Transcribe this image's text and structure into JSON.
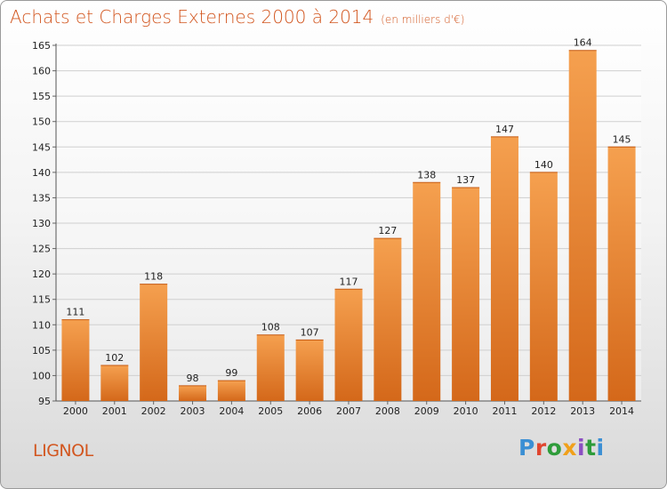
{
  "title": "Achats et Charges Externes 2000 à 2014",
  "unit_note": "(en milliers d'€)",
  "commune_name": "LIGNOL",
  "logo_text": "Proxiti",
  "colors": {
    "title": "#d2561f",
    "bar_top": "#f5a04f",
    "bar_bottom": "#d4681a",
    "logo": [
      "#3b8fd4",
      "#e0462f",
      "#2e9c3a",
      "#f0a01a",
      "#8b4fc2",
      "#2e9c3a",
      "#3b8fd4"
    ]
  },
  "chart_data": {
    "type": "bar",
    "categories": [
      "2000",
      "2001",
      "2002",
      "2003",
      "2004",
      "2005",
      "2006",
      "2007",
      "2008",
      "2009",
      "2010",
      "2011",
      "2012",
      "2013",
      "2014"
    ],
    "values": [
      111,
      102,
      118,
      98,
      99,
      108,
      107,
      117,
      127,
      138,
      137,
      147,
      140,
      164,
      145
    ],
    "data_labels": [
      "111",
      "102",
      "118",
      "98",
      "99",
      "108",
      "107",
      "117",
      "127",
      "138",
      "137",
      "147",
      "140",
      "164",
      "145"
    ],
    "ylim": [
      95,
      165
    ],
    "yticks": [
      95,
      100,
      105,
      110,
      115,
      120,
      125,
      130,
      135,
      140,
      145,
      150,
      155,
      160,
      165
    ],
    "grid": true,
    "xlabel": "",
    "ylabel": ""
  }
}
